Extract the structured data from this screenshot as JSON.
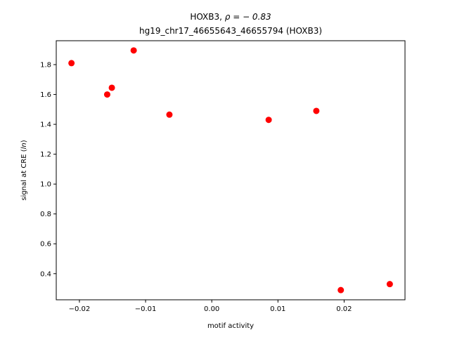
{
  "chart_data": {
    "type": "scatter",
    "title_line1_prefix": "HOXB3, ",
    "title_line1_math": "ρ = − 0.83",
    "title_line2": "hg19_chr17_46655643_46655794 (HOXB3)",
    "xlabel": "motif activity",
    "ylabel_prefix": "signal at CRE (",
    "ylabel_math": "ln",
    "ylabel_suffix": ")",
    "xlim": [
      -0.0235,
      0.0292
    ],
    "ylim": [
      0.225,
      1.96
    ],
    "xticks": [
      -0.02,
      -0.01,
      0.0,
      0.01,
      0.02
    ],
    "xtick_labels": [
      "−0.02",
      "−0.01",
      "0.00",
      "0.01",
      "0.02"
    ],
    "yticks": [
      0.4,
      0.6,
      0.8,
      1.0,
      1.2,
      1.4,
      1.6,
      1.8
    ],
    "ytick_labels": [
      "0.4",
      "0.6",
      "0.8",
      "1.0",
      "1.2",
      "1.4",
      "1.6",
      "1.8"
    ],
    "grid": false,
    "marker_color": "#ff0000",
    "series": [
      {
        "points": [
          {
            "x": -0.0212,
            "y": 1.81
          },
          {
            "x": -0.0158,
            "y": 1.6
          },
          {
            "x": -0.0151,
            "y": 1.645
          },
          {
            "x": -0.0118,
            "y": 1.895
          },
          {
            "x": -0.0064,
            "y": 1.465
          },
          {
            "x": 0.0086,
            "y": 1.43
          },
          {
            "x": 0.0158,
            "y": 1.49
          },
          {
            "x": 0.0195,
            "y": 0.29
          },
          {
            "x": 0.0269,
            "y": 0.33
          }
        ]
      }
    ]
  }
}
